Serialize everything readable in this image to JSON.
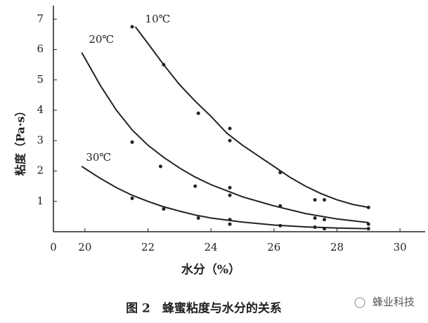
{
  "chart_data": {
    "type": "line",
    "caption": "图 2　蜂蜜粘度与水分的关系",
    "watermark": "蜂业科技",
    "xlabel": "水分（%）",
    "ylabel": "粘度（Pa·s）",
    "origin_label": "0",
    "xlim": [
      19,
      30.8
    ],
    "ylim": [
      0,
      7.4
    ],
    "xticks": [
      20,
      22,
      24,
      26,
      28,
      30
    ],
    "yticks": [
      1,
      2,
      3,
      4,
      5,
      6,
      7
    ],
    "color": "#222222",
    "series": [
      {
        "name": "10℃",
        "color": "#222222",
        "x": [
          21.6,
          22,
          22.5,
          23,
          23.5,
          24,
          24.5,
          25,
          25.5,
          26,
          26.5,
          27,
          27.5,
          28,
          28.5,
          29
        ],
        "values": [
          6.75,
          6.2,
          5.5,
          4.85,
          4.3,
          3.8,
          3.25,
          2.85,
          2.5,
          2.15,
          1.8,
          1.5,
          1.25,
          1.05,
          0.9,
          0.8
        ],
        "points": {
          "x": [
            21.5,
            22.5,
            23.6,
            24.6,
            24.6,
            26.2,
            27.3,
            27.6,
            29
          ],
          "y": [
            6.75,
            5.5,
            3.9,
            3.4,
            3.0,
            1.95,
            1.05,
            1.05,
            0.8
          ]
        }
      },
      {
        "name": "20℃",
        "color": "#222222",
        "x": [
          19.9,
          20.5,
          21,
          21.5,
          22,
          22.5,
          23,
          23.5,
          24,
          24.5,
          25,
          26,
          27,
          28,
          29
        ],
        "values": [
          5.9,
          4.8,
          4.0,
          3.35,
          2.85,
          2.45,
          2.1,
          1.8,
          1.55,
          1.35,
          1.15,
          0.85,
          0.6,
          0.42,
          0.3
        ],
        "points": {
          "x": [
            21.5,
            22.4,
            23.5,
            24.6,
            24.6,
            26.2,
            27.3,
            27.6,
            29
          ],
          "y": [
            2.95,
            2.15,
            1.5,
            1.45,
            1.2,
            0.85,
            0.45,
            0.4,
            0.25
          ]
        }
      },
      {
        "name": "30℃",
        "color": "#222222",
        "x": [
          19.9,
          20.5,
          21,
          21.5,
          22,
          22.5,
          23,
          23.5,
          24,
          25,
          26,
          27,
          28,
          29
        ],
        "values": [
          2.15,
          1.75,
          1.45,
          1.2,
          1.0,
          0.82,
          0.68,
          0.55,
          0.45,
          0.32,
          0.22,
          0.16,
          0.12,
          0.1
        ],
        "points": {
          "x": [
            21.5,
            22.5,
            23.6,
            24.6,
            24.6,
            26.2,
            27.3,
            27.6,
            29
          ],
          "y": [
            1.1,
            0.75,
            0.45,
            0.4,
            0.25,
            0.2,
            0.15,
            0.1,
            0.1
          ]
        }
      }
    ]
  }
}
